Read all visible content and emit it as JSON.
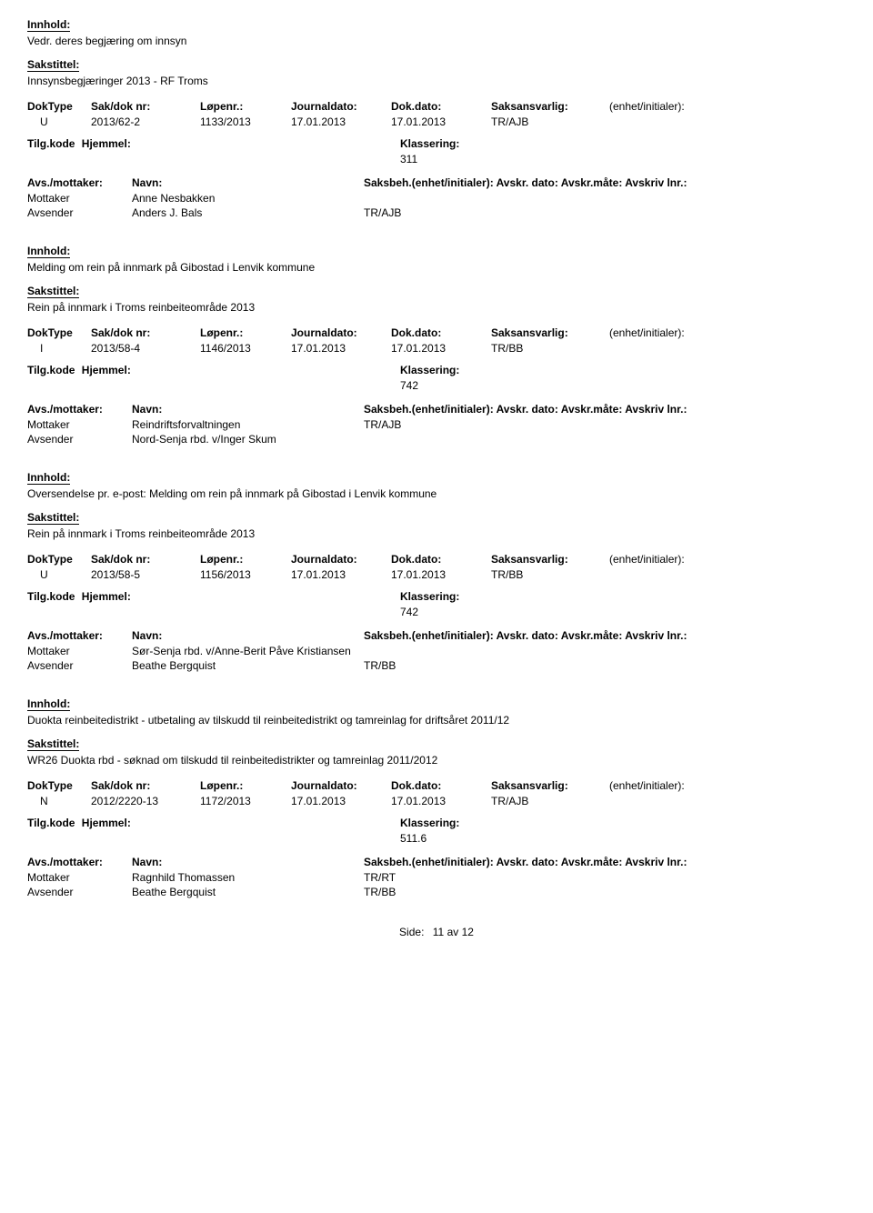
{
  "labels": {
    "innhold": "Innhold:",
    "sakstittel": "Sakstittel:",
    "doktype": "DokType",
    "sakdok": "Sak/dok nr:",
    "lopenr": "Løpenr.:",
    "journaldato": "Journaldato:",
    "dokdato": "Dok.dato:",
    "saksansvarlig": "Saksansvarlig:",
    "enhet": "(enhet/initialer):",
    "tilgkode": "Tilg.kode",
    "hjemmel": "Hjemmel:",
    "klassering": "Klassering:",
    "avsmottaker": "Avs./mottaker:",
    "navn": "Navn:",
    "saksbeh": "Saksbeh.(enhet/initialer): Avskr. dato:  Avskr.måte: Avskriv lnr.:",
    "mottaker": "Mottaker",
    "avsender": "Avsender",
    "side": "Side:",
    "av": "av"
  },
  "footer": {
    "page": "11",
    "total": "12"
  },
  "records": [
    {
      "title": "Vedr. deres begjæring om innsyn",
      "subtitle": "Innsynsbegjæringer 2013 - RF Troms",
      "doktype": "U",
      "sakdok": "2013/62-2",
      "lopenr": "1133/2013",
      "journaldato": "17.01.2013",
      "dokdato": "17.01.2013",
      "saksansvarlig": "TR/AJB",
      "klassering": "311",
      "parties": [
        {
          "role": "Mottaker",
          "name": "Anne Nesbakken",
          "code": ""
        },
        {
          "role": "Avsender",
          "name": "Anders J. Bals",
          "code": "TR/AJB"
        }
      ]
    },
    {
      "title": "Melding om rein på innmark på Gibostad i Lenvik kommune",
      "subtitle": "Rein på innmark i Troms reinbeiteområde 2013",
      "doktype": "I",
      "sakdok": "2013/58-4",
      "lopenr": "1146/2013",
      "journaldato": "17.01.2013",
      "dokdato": "17.01.2013",
      "saksansvarlig": "TR/BB",
      "klassering": "742",
      "parties": [
        {
          "role": "Mottaker",
          "name": "Reindriftsforvaltningen",
          "code": "TR/AJB"
        },
        {
          "role": "Avsender",
          "name": "Nord-Senja rbd. v/Inger Skum",
          "code": ""
        }
      ]
    },
    {
      "title": "Oversendelse pr. e-post: Melding om rein på innmark på Gibostad i Lenvik kommune",
      "subtitle": "Rein på innmark i Troms reinbeiteområde 2013",
      "doktype": "U",
      "sakdok": "2013/58-5",
      "lopenr": "1156/2013",
      "journaldato": "17.01.2013",
      "dokdato": "17.01.2013",
      "saksansvarlig": "TR/BB",
      "klassering": "742",
      "parties": [
        {
          "role": "Mottaker",
          "name": "Sør-Senja rbd. v/Anne-Berit Påve Kristiansen",
          "code": ""
        },
        {
          "role": "Avsender",
          "name": "Beathe Bergquist",
          "code": "TR/BB"
        }
      ]
    },
    {
      "title": "Duokta reinbeitedistrikt - utbetaling av tilskudd til reinbeitedistrikt og tamreinlag for driftsåret 2011/12",
      "subtitle": "WR26 Duokta rbd - søknad om tilskudd til reinbeitedistrikter og tamreinlag 2011/2012",
      "doktype": "N",
      "sakdok": "2012/2220-13",
      "lopenr": "1172/2013",
      "journaldato": "17.01.2013",
      "dokdato": "17.01.2013",
      "saksansvarlig": "TR/AJB",
      "klassering": "511.6",
      "parties": [
        {
          "role": "Mottaker",
          "name": "Ragnhild Thomassen",
          "code": "TR/RT"
        },
        {
          "role": "Avsender",
          "name": "Beathe Bergquist",
          "code": "TR/BB"
        }
      ]
    }
  ]
}
